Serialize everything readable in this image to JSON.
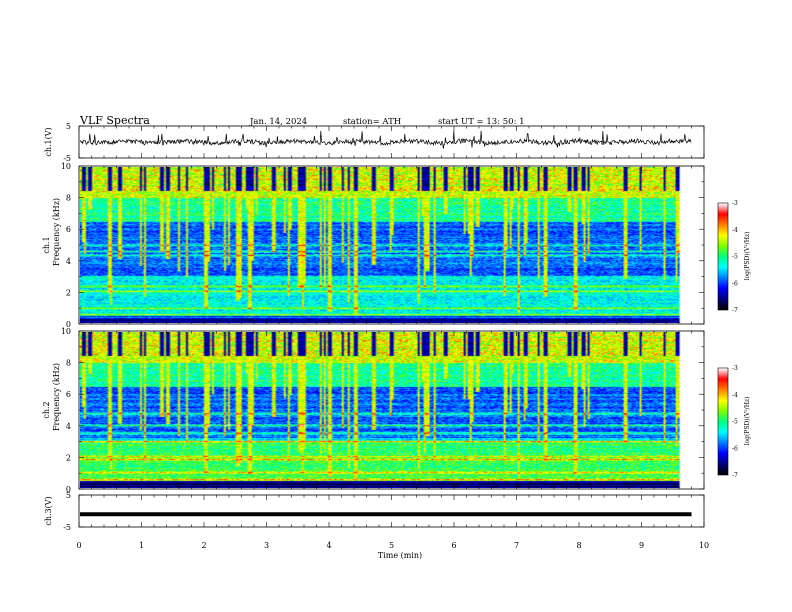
{
  "header": {
    "title": "VLF  Spectra",
    "date": "Jan.  14,  2024",
    "station": "station= ATH",
    "start": "start  UT  =    13: 50: 1"
  },
  "chart_data": {
    "type": "heatmap",
    "x_axis": {
      "label": "Time  (min)",
      "lim": [
        0,
        10
      ],
      "ticks": [
        "0",
        "1",
        "2",
        "3",
        "4",
        "5",
        "6",
        "7",
        "8",
        "9",
        "10"
      ]
    },
    "ch1_waveform": {
      "ylabel": "ch.1(V)",
      "ylim": [
        -5,
        5
      ],
      "ticks": [
        "5",
        "-5"
      ],
      "baseline": 0,
      "x_end": 9.8
    },
    "ch1_spectrogram": {
      "ylabel_channel": "ch.1",
      "ylabel": "Frequency  (kHz)",
      "ylim": [
        0,
        10
      ],
      "ticks": [
        "0",
        "2",
        "4",
        "6",
        "8",
        "10"
      ],
      "x_end": 9.8,
      "strong_bands_khz": [
        0.3,
        0.5,
        0.9,
        2.0,
        2.3,
        4.3,
        4.6,
        5.0
      ],
      "colorbar": {
        "label": "log(PSD)(V²/Hz)",
        "range": [
          -7,
          -3
        ],
        "ticks": [
          "-3",
          "-4",
          "-5",
          "-6",
          "-7"
        ]
      }
    },
    "ch2_spectrogram": {
      "ylabel_channel": "ch.2",
      "ylabel": "Frequency  (kHz)",
      "ylim": [
        0,
        10
      ],
      "ticks": [
        "0",
        "2",
        "4",
        "6",
        "8",
        "10"
      ],
      "x_end": 9.8,
      "strong_bands_khz": [
        0.5,
        1.0,
        1.8,
        2.0,
        3.0,
        3.5,
        4.0,
        4.8
      ],
      "colorbar": {
        "label": "log(PSD)(V²/Hz)",
        "range": [
          -7,
          -3
        ],
        "ticks": [
          "-3",
          "-4",
          "-5",
          "-6",
          "-7"
        ]
      }
    },
    "ch3_waveform": {
      "ylabel": "ch.3(V)",
      "ylim": [
        -5,
        5
      ],
      "ticks": [
        "5",
        "-5"
      ],
      "level": -1,
      "x_end": 9.8
    },
    "colormap": [
      "#000000",
      "#000080",
      "#0000ff",
      "#0080ff",
      "#00ffff",
      "#00ff80",
      "#80ff00",
      "#ffff00",
      "#ff8000",
      "#ff0000",
      "#ffffff"
    ]
  }
}
